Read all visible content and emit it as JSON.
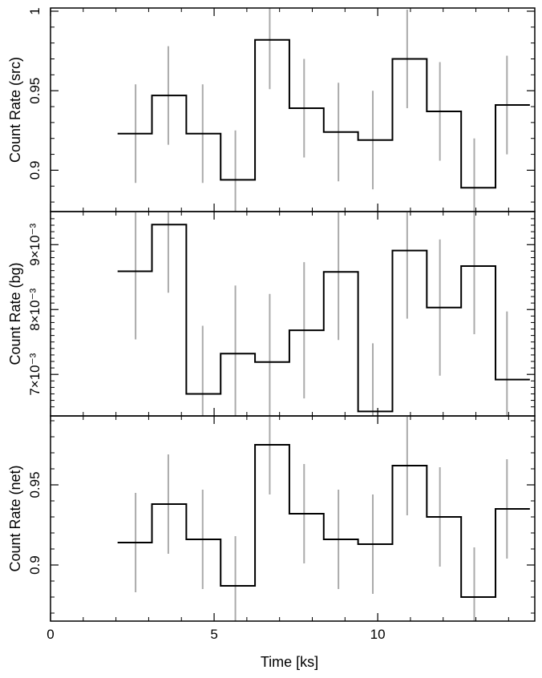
{
  "colors": {
    "step": "#000000",
    "error_bar": "#aaaaaa",
    "frame": "#000000"
  },
  "chart_data": [
    {
      "type": "line",
      "panel": "source",
      "ylabel": "Count Rate (src)",
      "xlim": [
        0,
        14.8
      ],
      "ylim": [
        0.874,
        1.002
      ],
      "bin_edges": [
        2.05,
        3.1,
        4.15,
        5.2,
        6.25,
        7.3,
        8.35,
        9.4,
        10.45,
        11.5,
        12.55,
        13.6,
        14.65
      ],
      "x": [
        2.6,
        3.6,
        4.65,
        5.65,
        6.7,
        7.75,
        8.8,
        9.85,
        10.9,
        11.9,
        12.95,
        13.95
      ],
      "values": [
        0.923,
        0.947,
        0.923,
        0.894,
        0.982,
        0.939,
        0.924,
        0.919,
        0.97,
        0.937,
        0.889,
        0.941
      ],
      "errors": [
        0.031,
        0.031,
        0.031,
        0.031,
        0.031,
        0.031,
        0.031,
        0.031,
        0.031,
        0.031,
        0.031,
        0.031
      ],
      "yticks_major": [
        0.9,
        0.95,
        1
      ],
      "yticks_minor": [
        0.88,
        0.89,
        0.91,
        0.92,
        0.93,
        0.94,
        0.96,
        0.97,
        0.98,
        0.99
      ],
      "ytick_labels": [
        "0.9",
        "0.95",
        "1"
      ]
    },
    {
      "type": "line",
      "panel": "background",
      "ylabel": "Count Rate (bg)",
      "xlim": [
        0,
        14.8
      ],
      "ylim": [
        0.00636,
        0.00951
      ],
      "bin_edges": [
        2.05,
        3.1,
        4.15,
        5.2,
        6.25,
        7.3,
        8.35,
        9.4,
        10.45,
        11.5,
        12.55,
        13.6,
        14.65
      ],
      "x": [
        2.6,
        3.6,
        4.65,
        5.65,
        6.7,
        7.75,
        8.8,
        9.85,
        10.9,
        11.9,
        12.95,
        13.95
      ],
      "values": [
        0.00859,
        0.00931,
        0.0067,
        0.00732,
        0.00719,
        0.00768,
        0.00858,
        0.00643,
        0.00891,
        0.00803,
        0.00867,
        0.00692
      ],
      "errors": [
        0.00105,
        0.00105,
        0.00105,
        0.00105,
        0.00105,
        0.00105,
        0.00105,
        0.00105,
        0.00105,
        0.00105,
        0.00105,
        0.00105
      ],
      "yticks_major": [
        0.007,
        0.008,
        0.009
      ],
      "yticks_minor": [
        0.0065,
        0.0066,
        0.0067,
        0.0068,
        0.0069,
        0.0071,
        0.0072,
        0.0073,
        0.0074,
        0.0075,
        0.0076,
        0.0077,
        0.0078,
        0.0079,
        0.0081,
        0.0082,
        0.0083,
        0.0084,
        0.0085,
        0.0086,
        0.0087,
        0.0088,
        0.0089,
        0.0091,
        0.0092,
        0.0093,
        0.0094
      ],
      "ytick_labels": [
        "7×10⁻³",
        "8×10⁻³",
        "9×10⁻³"
      ]
    },
    {
      "type": "line",
      "panel": "net",
      "ylabel": "Count Rate (net)",
      "xlabel": "Time [ks]",
      "xlim": [
        0,
        14.8
      ],
      "ylim": [
        0.865,
        0.993
      ],
      "bin_edges": [
        2.05,
        3.1,
        4.15,
        5.2,
        6.25,
        7.3,
        8.35,
        9.4,
        10.45,
        11.5,
        12.55,
        13.6,
        14.65
      ],
      "x": [
        2.6,
        3.6,
        4.65,
        5.65,
        6.7,
        7.75,
        8.8,
        9.85,
        10.9,
        11.9,
        12.95,
        13.95
      ],
      "values": [
        0.914,
        0.938,
        0.916,
        0.887,
        0.975,
        0.932,
        0.916,
        0.913,
        0.962,
        0.93,
        0.88,
        0.935
      ],
      "errors": [
        0.031,
        0.031,
        0.031,
        0.031,
        0.031,
        0.031,
        0.031,
        0.031,
        0.031,
        0.031,
        0.031,
        0.031
      ],
      "yticks_major": [
        0.9,
        0.95
      ],
      "yticks_minor": [
        0.87,
        0.88,
        0.89,
        0.91,
        0.92,
        0.93,
        0.94,
        0.96,
        0.97,
        0.98,
        0.99
      ],
      "ytick_labels": [
        "0.9",
        "0.95"
      ],
      "xticks_major": [
        0,
        5,
        10
      ],
      "xtick_labels": [
        "0",
        "5",
        "10"
      ],
      "xticks_minor": [
        1,
        2,
        3,
        4,
        6,
        7,
        8,
        9,
        11,
        12,
        13,
        14
      ]
    }
  ]
}
